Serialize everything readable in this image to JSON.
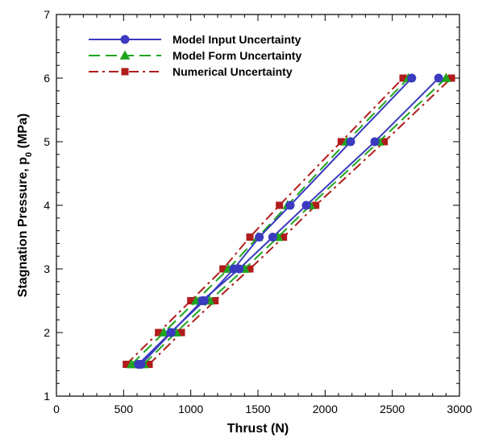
{
  "chart_data": {
    "type": "line",
    "xlabel": "Thrust (N)",
    "ylabel_main": "Stagnation Pressure, p",
    "ylabel_sub": "0",
    "ylabel_units": " (MPa)",
    "xlim": [
      0,
      3000
    ],
    "ylim": [
      1,
      7
    ],
    "x_ticks": [
      "0",
      "500",
      "1000",
      "1500",
      "2000",
      "2500",
      "3000"
    ],
    "y_ticks": [
      "1",
      "2",
      "3",
      "4",
      "5",
      "6",
      "7"
    ],
    "grid": false,
    "legend_position": "top-left",
    "series": [
      {
        "name": "Model Input Uncertainty",
        "color": "#3b3bbf",
        "line_style": "solid",
        "marker": "circle",
        "lines": [
          {
            "x": [
              610,
              850,
              1100,
              1320,
              1510,
              1740,
              2190,
              2645
            ],
            "y": [
              1.5,
              2.0,
              2.5,
              3.0,
              3.5,
              4.0,
              5.0,
              6.0
            ]
          },
          {
            "x": [
              630,
              855,
              1085,
              1360,
              1610,
              1860,
              2370,
              2845
            ],
            "y": [
              1.5,
              2.0,
              2.5,
              3.0,
              3.5,
              4.0,
              5.0,
              6.0
            ]
          }
        ]
      },
      {
        "name": "Model Form Uncertainty",
        "color": "#1fa51f",
        "line_style": "dashed",
        "marker": "triangle",
        "lines": [
          {
            "x": [
              560,
              800,
              1040,
              1280,
              1500,
              1720,
              2160,
              2620
            ],
            "y": [
              1.5,
              2.0,
              2.5,
              3.0,
              3.5,
              4.0,
              5.0,
              6.0
            ]
          },
          {
            "x": [
              650,
              890,
              1140,
              1400,
              1650,
              1890,
              2400,
              2900
            ],
            "y": [
              1.5,
              2.0,
              2.5,
              3.0,
              3.5,
              4.0,
              5.0,
              6.0
            ]
          }
        ]
      },
      {
        "name": "Numerical Uncertainty",
        "color": "#b01c1c",
        "line_style": "dash-dot",
        "marker": "square",
        "lines": [
          {
            "x": [
              520,
              760,
              1000,
              1240,
              1440,
              1660,
              2120,
              2580
            ],
            "y": [
              1.5,
              2.0,
              2.5,
              3.0,
              3.5,
              4.0,
              5.0,
              6.0
            ]
          },
          {
            "x": [
              690,
              930,
              1180,
              1440,
              1690,
              1930,
              2440,
              2940
            ],
            "y": [
              1.5,
              2.0,
              2.5,
              3.0,
              3.5,
              4.0,
              5.0,
              6.0
            ]
          }
        ]
      }
    ]
  }
}
